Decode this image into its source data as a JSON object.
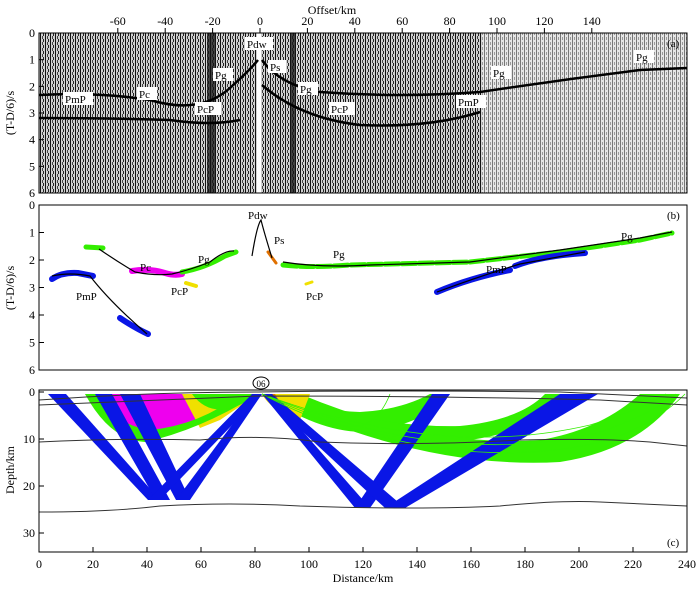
{
  "panels": {
    "a": {
      "label": "(a)",
      "top_axis_title": "Offset/km",
      "offset_ticks": [
        "-60",
        "-40",
        "-20",
        "0",
        "20",
        "40",
        "60",
        "80",
        "100",
        "120",
        "140"
      ],
      "time_ticks": [
        "0",
        "1",
        "2",
        "3",
        "4",
        "5",
        "6"
      ],
      "ylabel": "(T-D/6)/s",
      "phase_labels": [
        "PmP",
        "Pc",
        "PcP",
        "Pg",
        "Pdw",
        "Ps",
        "Pg",
        "PcP",
        "PmP",
        "Pg",
        "Pg"
      ]
    },
    "b": {
      "label": "(b)",
      "time_ticks": [
        "0",
        "1",
        "2",
        "3",
        "4",
        "5",
        "6"
      ],
      "ylabel": "(T-D/6)/s",
      "phase_labels": [
        "Pdw",
        "Ps",
        "Pc",
        "Pg",
        "PcP",
        "PmP",
        "Pg",
        "PcP",
        "PmP",
        "Pg"
      ]
    },
    "c": {
      "label": "(c)",
      "station": "06",
      "depth_ticks": [
        "0",
        "10",
        "20",
        "30"
      ],
      "ylabel": "Depth/km",
      "distance_ticks": [
        "0",
        "20",
        "40",
        "60",
        "80",
        "100",
        "120",
        "140",
        "160",
        "180",
        "200",
        "220",
        "240"
      ],
      "xlabel": "Distance/km"
    }
  },
  "colors": {
    "pg": "#33ee00",
    "pc": "#ee00ee",
    "pmp": "#0a16e6",
    "pcp": "#f0e000",
    "ps": "#e07000"
  }
}
